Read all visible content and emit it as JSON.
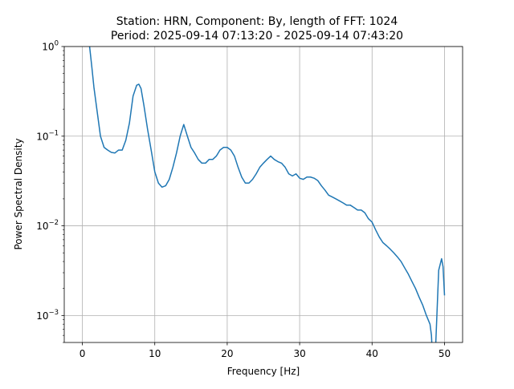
{
  "chart_data": {
    "type": "line",
    "title_line1": "Station: HRN, Component: By, length of FFT: 1024",
    "title_line2": "Period: 2025-09-14 07:13:20 - 2025-09-14 07:43:20",
    "xlabel": "Frequency [Hz]",
    "ylabel": "Power Spectral Density",
    "xscale": "linear",
    "yscale": "log",
    "xlim": [
      -2.5,
      52.5
    ],
    "ylim": [
      0.0005,
      1
    ],
    "grid": true,
    "line_color": "#1f77b4",
    "xticks": [
      {
        "value": 0,
        "label": "0"
      },
      {
        "value": 10,
        "label": "10"
      },
      {
        "value": 20,
        "label": "20"
      },
      {
        "value": 30,
        "label": "30"
      },
      {
        "value": 40,
        "label": "40"
      },
      {
        "value": 50,
        "label": "50"
      }
    ],
    "yticks": [
      {
        "value": 0.001,
        "mantissa": "10",
        "exponent": "−3"
      },
      {
        "value": 0.01,
        "mantissa": "10",
        "exponent": "−2"
      },
      {
        "value": 0.1,
        "mantissa": "10",
        "exponent": "−1"
      },
      {
        "value": 1,
        "mantissa": "10",
        "exponent": "0"
      }
    ],
    "series": [
      {
        "x": [
          1.0,
          1.3,
          1.6,
          2.0,
          2.5,
          3.0,
          3.5,
          4.0,
          4.5,
          5.0,
          5.5,
          6.0,
          6.5,
          7.0,
          7.5,
          7.8,
          8.1,
          8.5,
          9.0,
          9.5,
          10.0,
          10.5,
          11.0,
          11.5,
          12.0,
          12.5,
          13.0,
          13.5,
          14.0,
          14.5,
          15.0,
          15.5,
          16.0,
          16.5,
          17.0,
          17.5,
          18.0,
          18.5,
          19.0,
          19.5,
          20.0,
          20.5,
          21.0,
          21.5,
          22.0,
          22.5,
          23.0,
          23.5,
          24.0,
          24.5,
          25.0,
          25.5,
          26.0,
          26.5,
          27.0,
          27.5,
          28.0,
          28.5,
          29.0,
          29.5,
          30.0,
          30.5,
          31.0,
          31.5,
          32.0,
          32.5,
          33.0,
          33.5,
          34.0,
          34.5,
          35.0,
          35.5,
          36.0,
          36.5,
          37.0,
          37.5,
          38.0,
          38.5,
          39.0,
          39.5,
          40.0,
          40.5,
          41.0,
          41.5,
          42.0,
          42.5,
          43.0,
          43.5,
          44.0,
          44.5,
          45.0,
          45.5,
          46.0,
          46.5,
          47.0,
          47.5,
          48.0,
          48.2,
          48.3,
          48.5,
          48.8,
          49.2,
          49.6,
          49.8,
          50.0
        ],
        "y": [
          1.0,
          0.6,
          0.35,
          0.2,
          0.1,
          0.075,
          0.07,
          0.066,
          0.065,
          0.07,
          0.07,
          0.09,
          0.14,
          0.28,
          0.37,
          0.38,
          0.34,
          0.22,
          0.12,
          0.07,
          0.04,
          0.03,
          0.027,
          0.028,
          0.033,
          0.045,
          0.065,
          0.1,
          0.135,
          0.1,
          0.075,
          0.065,
          0.055,
          0.05,
          0.05,
          0.055,
          0.055,
          0.06,
          0.07,
          0.075,
          0.075,
          0.07,
          0.06,
          0.045,
          0.035,
          0.03,
          0.03,
          0.033,
          0.038,
          0.045,
          0.05,
          0.055,
          0.06,
          0.055,
          0.052,
          0.05,
          0.045,
          0.038,
          0.036,
          0.038,
          0.034,
          0.033,
          0.035,
          0.035,
          0.034,
          0.032,
          0.028,
          0.025,
          0.022,
          0.021,
          0.02,
          0.019,
          0.018,
          0.017,
          0.017,
          0.016,
          0.015,
          0.015,
          0.014,
          0.012,
          0.011,
          0.009,
          0.0075,
          0.0065,
          0.006,
          0.0055,
          0.005,
          0.0045,
          0.004,
          0.0034,
          0.0029,
          0.0024,
          0.002,
          0.0016,
          0.0013,
          0.001,
          0.0008,
          0.0006,
          0.0004,
          0.0003,
          0.0005,
          0.0032,
          0.0043,
          0.0035,
          0.0017
        ]
      }
    ]
  }
}
